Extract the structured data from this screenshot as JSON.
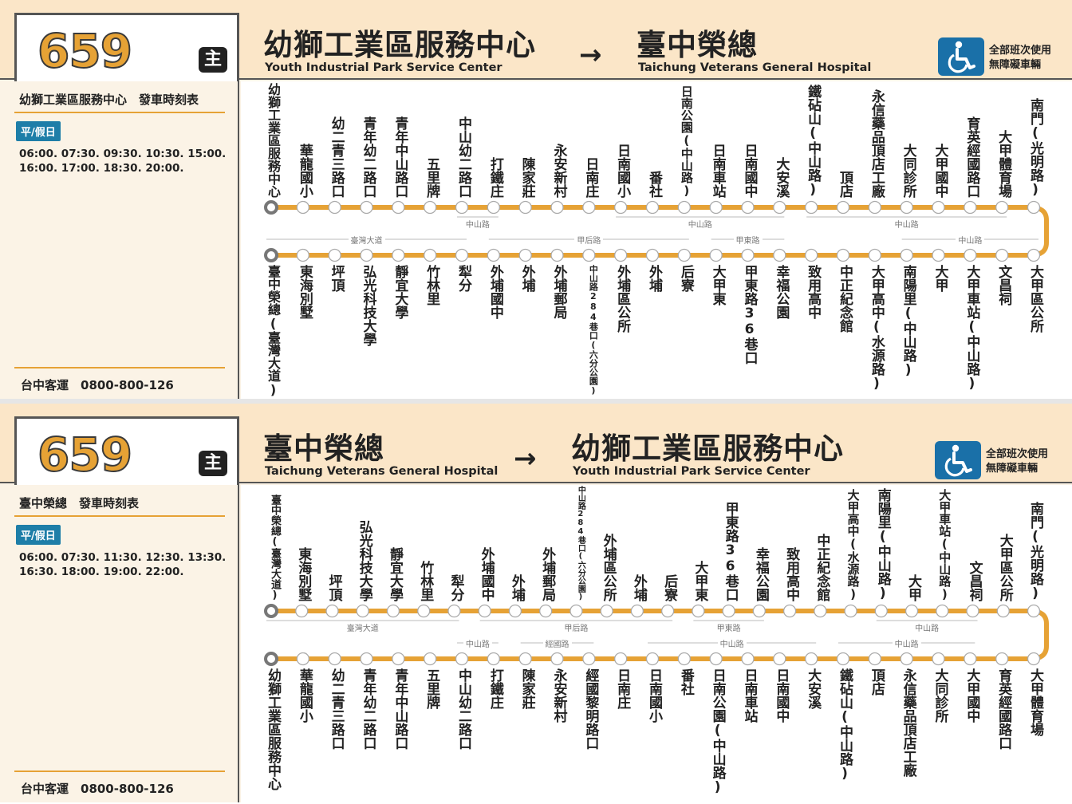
{
  "panels": [
    {
      "route_number": "659",
      "badge": "主",
      "from_zh": "幼獅工業區服務中心",
      "from_en": "Youth Industrial Park Service Center",
      "to_zh": "臺中榮總",
      "to_en": "Taichung Veterans General Hospital",
      "arrow": "→",
      "accessibility": {
        "line1": "全部班次使用",
        "line2": "無障礙車輛",
        "icon": "wheelchair-icon",
        "color": "#1a70a8"
      },
      "timetable_title": "幼獅工業區服務中心　發車時刻表",
      "day_badge": "平/假日",
      "times_line1": "06:00. 07:30. 09:30. 10:30. 15:00.",
      "times_line2": "16:00. 17:00. 18:30. 20:00.",
      "company": "台中客運　0800-800-126",
      "top_stops": [
        "幼獅工業區服務中心",
        "華龍國小",
        "幼二青三路口",
        "青年幼二路口",
        "青年中山路口",
        "五里牌",
        "中山幼二路口",
        "打鐵庄",
        "陳家莊",
        "永安新村",
        "日南庄",
        "日南國小",
        "番社",
        "日南公園(中山路)",
        "日南車站",
        "日南國中",
        "大安溪",
        "鐵砧山(中山路)",
        "頂店",
        "永信藥品頂店工廠",
        "大同診所",
        "大甲國中",
        "育英經國路口",
        "大甲體育場",
        "南門(光明路)"
      ],
      "bottom_stops": [
        "臺中榮總(臺灣大道)",
        "東海別墅",
        "坪頂",
        "弘光科技大學",
        "靜宜大學",
        "竹林里",
        "犁分",
        "外埔國中",
        "外埔",
        "外埔郵局",
        "中山路284巷口(六分公園)",
        "外埔區公所",
        "外埔",
        "后寮",
        "大甲東",
        "甲東路36巷口",
        "幸福公園",
        "致用高中",
        "中正紀念館",
        "大甲高中(水源路)",
        "南陽里(中山路)",
        "大甲",
        "大甲車站(中山路)",
        "文昌祠",
        "大甲區公所"
      ],
      "top_roads": [
        {
          "label": "中山路",
          "from": 6,
          "to": 7
        },
        {
          "label": "中山路",
          "from": 11,
          "to": 16
        },
        {
          "label": "中山路",
          "from": 17,
          "to": 23
        }
      ],
      "bottom_roads": [
        {
          "label": "臺灣大道",
          "from": 0,
          "to": 6
        },
        {
          "label": "甲后路",
          "from": 7,
          "to": 13
        },
        {
          "label": "甲東路",
          "from": 14,
          "to": 16
        },
        {
          "label": "中山路",
          "from": 20,
          "to": 24
        }
      ]
    },
    {
      "route_number": "659",
      "badge": "主",
      "from_zh": "臺中榮總",
      "from_en": "Taichung Veterans General Hospital",
      "to_zh": "幼獅工業區服務中心",
      "to_en": "Youth Industrial Park Service Center",
      "arrow": "→",
      "accessibility": {
        "line1": "全部班次使用",
        "line2": "無障礙車輛",
        "icon": "wheelchair-icon",
        "color": "#1a70a8"
      },
      "timetable_title": "臺中榮總　發車時刻表",
      "day_badge": "平/假日",
      "times_line1": "06:00. 07:30. 11:30. 12:30. 13:30.",
      "times_line2": "16:30. 18:00. 19:00. 22:00.",
      "company": "台中客運　0800-800-126",
      "top_stops": [
        "臺中榮總(臺灣大道)",
        "東海別墅",
        "坪頂",
        "弘光科技大學",
        "靜宜大學",
        "竹林里",
        "犁分",
        "外埔國中",
        "外埔",
        "外埔郵局",
        "中山路284巷口(六分公園)",
        "外埔區公所",
        "外埔",
        "后寮",
        "大甲東",
        "甲東路36巷口",
        "幸福公園",
        "致用高中",
        "中正紀念館",
        "大甲高中(水源路)",
        "南陽里(中山路)",
        "大甲",
        "大甲車站(中山路)",
        "文昌祠",
        "大甲區公所",
        "南門(光明路)"
      ],
      "bottom_stops": [
        "幼獅工業區服務中心",
        "華龍國小",
        "幼二青三路口",
        "青年幼二路口",
        "青年中山路口",
        "五里牌",
        "中山幼二路口",
        "打鐵庄",
        "陳家莊",
        "永安新村",
        "經國黎明路口",
        "日南庄",
        "日南國小",
        "番社",
        "日南公園(中山路)",
        "日南車站",
        "日南國中",
        "大安溪",
        "鐵砧山(中山路)",
        "頂店",
        "永信藥品頂店工廠",
        "大同診所",
        "大甲國中",
        "育英經國路口",
        "大甲體育場"
      ],
      "top_roads": [
        {
          "label": "臺灣大道",
          "from": 0,
          "to": 6
        },
        {
          "label": "甲后路",
          "from": 7,
          "to": 13
        },
        {
          "label": "甲東路",
          "from": 14,
          "to": 16
        },
        {
          "label": "中山路",
          "from": 20,
          "to": 23
        }
      ],
      "bottom_roads": [
        {
          "label": "中山路",
          "from": 6,
          "to": 7
        },
        {
          "label": "經國路",
          "from": 8,
          "to": 10
        },
        {
          "label": "中山路",
          "from": 12,
          "to": 17
        },
        {
          "label": "中山路",
          "from": 18,
          "to": 22
        }
      ]
    }
  ]
}
